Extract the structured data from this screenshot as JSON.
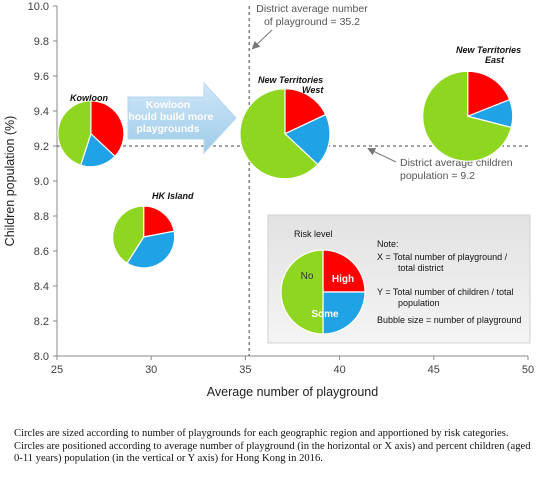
{
  "chart_data": {
    "type": "bubble-pie",
    "xlabel": "Average number of playground",
    "ylabel": "Children population (%)",
    "xlim": [
      25,
      50
    ],
    "ylim": [
      8.0,
      10.0
    ],
    "x_ticks": [
      "25",
      "30",
      "35",
      "40",
      "45",
      "50"
    ],
    "y_ticks": [
      "8.0",
      "8.2",
      "8.4",
      "8.6",
      "8.8",
      "9.0",
      "9.2",
      "9.4",
      "9.6",
      "9.8",
      "10.0"
    ],
    "grid": false,
    "categories": [
      "High",
      "Some",
      "No"
    ],
    "colors": {
      "High": "#ff0000",
      "Some": "#1fa3e6",
      "No": "#8fd620"
    },
    "series": [
      {
        "label": "Kowloon",
        "x": 26.8,
        "y": 9.27,
        "shares": [
          0.37,
          0.18,
          0.45
        ]
      },
      {
        "label": "HK Island",
        "x": 29.6,
        "y": 8.68,
        "shares": [
          0.22,
          0.37,
          0.41
        ]
      },
      {
        "label": "New Territories West",
        "x": 37.1,
        "y": 9.27,
        "shares": [
          0.18,
          0.19,
          0.63
        ]
      },
      {
        "label": "New Territories East",
        "x": 46.8,
        "y": 9.37,
        "shares": [
          0.19,
          0.1,
          0.71
        ]
      }
    ],
    "reference_lines": [
      {
        "axis": "x",
        "value": 35.2,
        "label": "District average number of playground = 35.2"
      },
      {
        "axis": "y",
        "value": 9.2,
        "label": "District average children population = 9.2"
      }
    ],
    "arrow_annotation": "Kowloon should build more playgrounds",
    "legend": {
      "title": "Risk level",
      "labels": {
        "High": "High",
        "Some": "Some",
        "No": "No"
      },
      "note_title": "Note:",
      "note_x": "X =   Total number of playground / total district",
      "note_y": "Y =  Total number of children / total population",
      "note_size": "Bubble size = number of playground"
    }
  },
  "caption": "Circles are sized according to number of playgrounds for each geographic region and apportioned by risk categories. Circles are positioned according to average number of playground (in the horizontal or X axis) and percent children (aged 0-11 years) population (in the vertical or Y axis) for Hong Kong in 2016."
}
